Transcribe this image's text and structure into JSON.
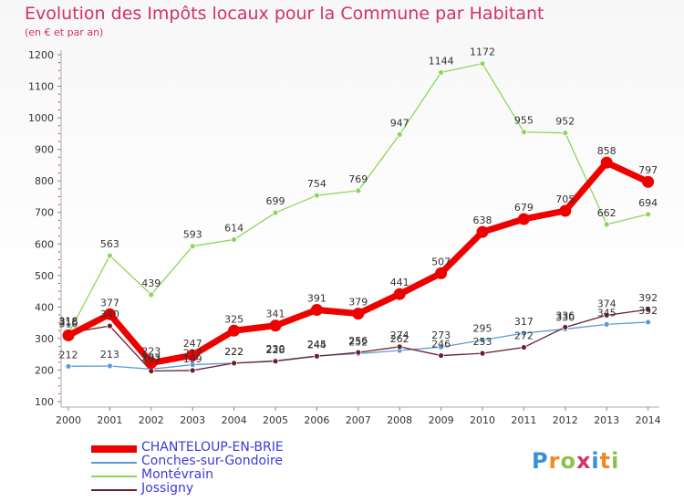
{
  "chart_data": {
    "type": "line",
    "title": "Evolution des Impôts locaux pour la Commune par Habitant",
    "subtitle": "(en € et par an)",
    "x": [
      "2000",
      "2001",
      "2002",
      "2003",
      "2004",
      "2005",
      "2006",
      "2007",
      "2008",
      "2009",
      "2010",
      "2011",
      "2012",
      "2013",
      "2014"
    ],
    "ylim": [
      100,
      1200
    ],
    "yticks": [
      100,
      200,
      300,
      400,
      500,
      600,
      700,
      800,
      900,
      1000,
      1100,
      1200
    ],
    "grid": false,
    "legend_position": "bottom-left",
    "series": [
      {
        "name": "CHANTELOUP-EN-BRIE",
        "color": "#ee0000",
        "values": [
          310,
          377,
          223,
          247,
          325,
          341,
          391,
          379,
          441,
          507,
          638,
          679,
          705,
          858,
          797
        ]
      },
      {
        "name": "Conches-sur-Gondoire",
        "color": "#5b9bd5",
        "values": [
          212,
          213,
          203,
          217,
          222,
          230,
          245,
          252,
          262,
          273,
          295,
          317,
          330,
          345,
          352
        ]
      },
      {
        "name": "Montévrain",
        "color": "#8ed65a",
        "values": [
          316,
          563,
          439,
          593,
          614,
          699,
          754,
          769,
          947,
          1144,
          1172,
          955,
          952,
          662,
          694
        ]
      },
      {
        "name": "Jossigny",
        "color": "#6b1e2e",
        "values": [
          318,
          340,
          197,
          199,
          222,
          228,
          244,
          256,
          274,
          246,
          253,
          272,
          336,
          374,
          392
        ]
      }
    ]
  },
  "logo": {
    "letters": [
      "P",
      "r",
      "o",
      "x",
      "i",
      "t",
      "i"
    ],
    "colors": [
      "#3b8fd6",
      "#f08a1c",
      "#8bc34a",
      "#d6336c",
      "#3b8fd6",
      "#f08a1c",
      "#8bc34a"
    ]
  }
}
